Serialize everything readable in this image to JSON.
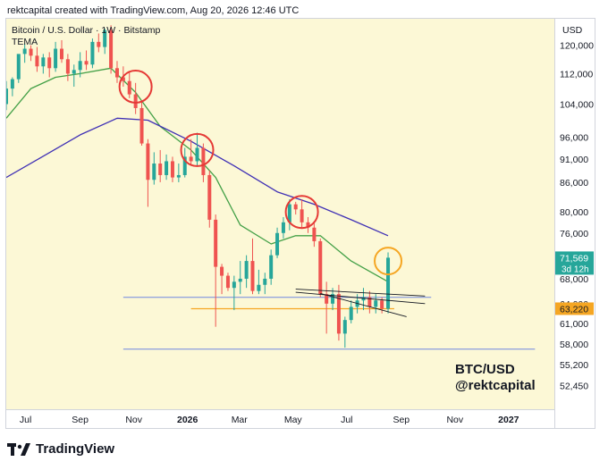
{
  "header": {
    "attribution": "rektcapital created with TradingView.com, Aug 20, 2026 12:46 UTC"
  },
  "chart_header": {
    "symbol": "Bitcoin / U.S. Dollar · 1W · Bitstamp",
    "indicator": "TEMA"
  },
  "currency": "USD",
  "watermark": {
    "line1": "BTC/USD",
    "line2": "@rektcapital"
  },
  "footer": {
    "brand": "TradingView",
    "logo_icon": "tradingview-logo-icon"
  },
  "colors": {
    "background": "#fcf8d6",
    "up_candle": "#26a69a",
    "down_candle": "#ef5350",
    "ema_short": "#43a047",
    "ema_long": "#3f30b5",
    "support_lines": "#6f86e0",
    "orange_level": "#f5a623",
    "red_circles": "#e53935",
    "orange_circle": "#f5a623",
    "price_tag": "#26a69a"
  },
  "chart_data": {
    "type": "candlestick",
    "timeframe": "1W",
    "y_scale": "log",
    "ylim": [
      49500,
      128000
    ],
    "xlim": [
      "2025-06-09",
      "2027-02-22"
    ],
    "x_ticks": [
      {
        "label": "Jul",
        "date": "2025-07-01"
      },
      {
        "label": "Sep",
        "date": "2025-09-01"
      },
      {
        "label": "Nov",
        "date": "2025-11-01"
      },
      {
        "label": "2026",
        "date": "2026-01-01",
        "bold": true
      },
      {
        "label": "Mar",
        "date": "2026-03-01"
      },
      {
        "label": "May",
        "date": "2026-05-01"
      },
      {
        "label": "Jul",
        "date": "2026-07-01"
      },
      {
        "label": "Sep",
        "date": "2026-09-01"
      },
      {
        "label": "Nov",
        "date": "2026-11-01"
      },
      {
        "label": "2027",
        "date": "2027-01-01",
        "bold": true
      }
    ],
    "y_ticks": [
      120000,
      112000,
      104000,
      96000,
      91000,
      86000,
      80000,
      76000,
      68000,
      64000,
      61000,
      58000,
      55200,
      52450
    ],
    "candles": [
      {
        "d": "2025-06-09",
        "o": 104000,
        "h": 110000,
        "l": 102500,
        "c": 108000
      },
      {
        "d": "2025-06-16",
        "o": 108000,
        "h": 111000,
        "l": 106000,
        "c": 110500
      },
      {
        "d": "2025-06-23",
        "o": 110500,
        "h": 117000,
        "l": 109500,
        "c": 117500
      },
      {
        "d": "2025-06-30",
        "o": 117500,
        "h": 120500,
        "l": 115000,
        "c": 119000
      },
      {
        "d": "2025-07-07",
        "o": 119000,
        "h": 120000,
        "l": 115500,
        "c": 117000
      },
      {
        "d": "2025-07-14",
        "o": 117000,
        "h": 119500,
        "l": 112500,
        "c": 114000
      },
      {
        "d": "2025-07-21",
        "o": 114000,
        "h": 117500,
        "l": 112000,
        "c": 116500
      },
      {
        "d": "2025-07-28",
        "o": 116500,
        "h": 118000,
        "l": 111000,
        "c": 113500
      },
      {
        "d": "2025-08-04",
        "o": 113500,
        "h": 121000,
        "l": 112500,
        "c": 119000
      },
      {
        "d": "2025-08-11",
        "o": 119000,
        "h": 121500,
        "l": 115000,
        "c": 116000
      },
      {
        "d": "2025-08-18",
        "o": 116000,
        "h": 117500,
        "l": 110000,
        "c": 112000
      },
      {
        "d": "2025-08-25",
        "o": 112000,
        "h": 114500,
        "l": 108500,
        "c": 113000
      },
      {
        "d": "2025-09-01",
        "o": 113000,
        "h": 118000,
        "l": 111000,
        "c": 115500
      },
      {
        "d": "2025-09-08",
        "o": 115500,
        "h": 118500,
        "l": 113000,
        "c": 114500
      },
      {
        "d": "2025-09-15",
        "o": 114500,
        "h": 122000,
        "l": 113500,
        "c": 121000
      },
      {
        "d": "2025-09-22",
        "o": 121000,
        "h": 123500,
        "l": 118000,
        "c": 119500
      },
      {
        "d": "2025-09-29",
        "o": 119500,
        "h": 125000,
        "l": 117500,
        "c": 124500
      },
      {
        "d": "2025-10-06",
        "o": 124500,
        "h": 126000,
        "l": 112000,
        "c": 113500
      },
      {
        "d": "2025-10-13",
        "o": 113500,
        "h": 115500,
        "l": 109500,
        "c": 111000
      },
      {
        "d": "2025-10-20",
        "o": 111000,
        "h": 114000,
        "l": 108500,
        "c": 110000
      },
      {
        "d": "2025-10-27",
        "o": 110000,
        "h": 112500,
        "l": 105500,
        "c": 106500
      },
      {
        "d": "2025-11-03",
        "o": 106500,
        "h": 109500,
        "l": 101500,
        "c": 103000
      },
      {
        "d": "2025-11-10",
        "o": 103000,
        "h": 105000,
        "l": 94000,
        "c": 94500
      },
      {
        "d": "2025-11-17",
        "o": 94500,
        "h": 95500,
        "l": 81000,
        "c": 86500
      },
      {
        "d": "2025-11-24",
        "o": 86500,
        "h": 92500,
        "l": 85500,
        "c": 90000
      },
      {
        "d": "2025-12-01",
        "o": 90000,
        "h": 93000,
        "l": 86000,
        "c": 87500
      },
      {
        "d": "2025-12-08",
        "o": 87500,
        "h": 92000,
        "l": 86500,
        "c": 90500
      },
      {
        "d": "2025-12-15",
        "o": 90500,
        "h": 91500,
        "l": 86000,
        "c": 87000
      },
      {
        "d": "2025-12-22",
        "o": 87000,
        "h": 90000,
        "l": 86000,
        "c": 87500
      },
      {
        "d": "2025-12-29",
        "o": 87500,
        "h": 93500,
        "l": 87000,
        "c": 91500
      },
      {
        "d": "2026-01-05",
        "o": 91500,
        "h": 95500,
        "l": 89500,
        "c": 90500
      },
      {
        "d": "2026-01-12",
        "o": 90500,
        "h": 97000,
        "l": 89500,
        "c": 93500
      },
      {
        "d": "2026-01-19",
        "o": 93500,
        "h": 94500,
        "l": 86000,
        "c": 87500
      },
      {
        "d": "2026-01-26",
        "o": 87500,
        "h": 88500,
        "l": 77000,
        "c": 78500
      },
      {
        "d": "2026-02-02",
        "o": 78500,
        "h": 79500,
        "l": 60500,
        "c": 70000
      },
      {
        "d": "2026-02-09",
        "o": 70000,
        "h": 70500,
        "l": 65500,
        "c": 68500
      },
      {
        "d": "2026-02-16",
        "o": 68500,
        "h": 69000,
        "l": 66000,
        "c": 66500
      },
      {
        "d": "2026-02-23",
        "o": 66500,
        "h": 68500,
        "l": 63000,
        "c": 67500
      },
      {
        "d": "2026-03-02",
        "o": 67500,
        "h": 71000,
        "l": 65500,
        "c": 68000
      },
      {
        "d": "2026-03-09",
        "o": 68000,
        "h": 72000,
        "l": 66500,
        "c": 71000
      },
      {
        "d": "2026-03-16",
        "o": 71000,
        "h": 75000,
        "l": 65500,
        "c": 66000
      },
      {
        "d": "2026-03-23",
        "o": 66000,
        "h": 69500,
        "l": 65500,
        "c": 67000
      },
      {
        "d": "2026-03-30",
        "o": 67000,
        "h": 69000,
        "l": 65500,
        "c": 68000
      },
      {
        "d": "2026-04-06",
        "o": 68000,
        "h": 73000,
        "l": 67000,
        "c": 72000
      },
      {
        "d": "2026-04-13",
        "o": 72000,
        "h": 77000,
        "l": 71500,
        "c": 76000
      },
      {
        "d": "2026-04-20",
        "o": 76000,
        "h": 79000,
        "l": 75000,
        "c": 78000
      },
      {
        "d": "2026-04-27",
        "o": 78000,
        "h": 82500,
        "l": 76500,
        "c": 81500
      },
      {
        "d": "2026-05-04",
        "o": 81500,
        "h": 82000,
        "l": 79500,
        "c": 80500
      },
      {
        "d": "2026-05-11",
        "o": 80500,
        "h": 82500,
        "l": 77000,
        "c": 78000
      },
      {
        "d": "2026-05-18",
        "o": 78000,
        "h": 79000,
        "l": 76000,
        "c": 77000
      },
      {
        "d": "2026-05-25",
        "o": 77000,
        "h": 78000,
        "l": 73500,
        "c": 74500
      },
      {
        "d": "2026-06-01",
        "o": 74500,
        "h": 75000,
        "l": 65000,
        "c": 65500
      },
      {
        "d": "2026-06-08",
        "o": 65500,
        "h": 67500,
        "l": 59500,
        "c": 64000
      },
      {
        "d": "2026-06-15",
        "o": 64000,
        "h": 66500,
        "l": 63000,
        "c": 65500
      },
      {
        "d": "2026-06-22",
        "o": 65500,
        "h": 67000,
        "l": 58500,
        "c": 59500
      },
      {
        "d": "2026-06-29",
        "o": 59500,
        "h": 62000,
        "l": 57500,
        "c": 61500
      },
      {
        "d": "2026-07-06",
        "o": 61500,
        "h": 64500,
        "l": 61000,
        "c": 63500
      },
      {
        "d": "2026-07-13",
        "o": 63500,
        "h": 65500,
        "l": 62500,
        "c": 64500
      },
      {
        "d": "2026-07-20",
        "o": 64500,
        "h": 66500,
        "l": 63000,
        "c": 65000
      },
      {
        "d": "2026-07-27",
        "o": 65000,
        "h": 66000,
        "l": 62500,
        "c": 63500
      },
      {
        "d": "2026-08-03",
        "o": 63500,
        "h": 65500,
        "l": 62500,
        "c": 64500
      },
      {
        "d": "2026-08-10",
        "o": 64500,
        "h": 65000,
        "l": 62500,
        "c": 63220
      },
      {
        "d": "2026-08-17",
        "o": 63220,
        "h": 72500,
        "l": 62500,
        "c": 71569
      }
    ],
    "series": [
      {
        "color": "#43a047",
        "points": [
          [
            "2025-06-09",
            100500
          ],
          [
            "2025-07-07",
            108000
          ],
          [
            "2025-08-04",
            111000
          ],
          [
            "2025-09-01",
            112000
          ],
          [
            "2025-10-06",
            113500
          ],
          [
            "2025-11-03",
            107000
          ],
          [
            "2025-12-01",
            98500
          ],
          [
            "2026-01-05",
            93000
          ],
          [
            "2026-02-02",
            87000
          ],
          [
            "2026-03-02",
            77500
          ],
          [
            "2026-04-06",
            74000
          ],
          [
            "2026-05-04",
            75500
          ],
          [
            "2026-06-01",
            75500
          ],
          [
            "2026-07-06",
            71000
          ],
          [
            "2026-08-17",
            67500
          ]
        ]
      },
      {
        "color": "#3f30b5",
        "points": [
          [
            "2025-06-09",
            87000
          ],
          [
            "2025-07-20",
            91500
          ],
          [
            "2025-09-01",
            96500
          ],
          [
            "2025-10-13",
            100500
          ],
          [
            "2025-11-17",
            100000
          ],
          [
            "2026-01-05",
            95000
          ],
          [
            "2026-02-23",
            89500
          ],
          [
            "2026-04-13",
            84000
          ],
          [
            "2026-05-25",
            81500
          ],
          [
            "2026-07-06",
            78500
          ],
          [
            "2026-08-17",
            75500
          ]
        ]
      }
    ],
    "last_price": {
      "value": 71569,
      "label": "71,569",
      "countdown": "3d 12h"
    },
    "orange_level": {
      "value": 63220,
      "label": "63,220"
    },
    "horizontal_lines": [
      {
        "value": 65000,
        "from": "2025-10-20",
        "to": "2026-10-05"
      },
      {
        "value": 57300,
        "from": "2025-10-20",
        "to": "2027-01-31"
      }
    ],
    "orange_line": {
      "value": 63220,
      "from": "2026-01-05",
      "to": "2026-08-24"
    },
    "trend_lines": [
      {
        "from": [
          "2026-05-04",
          66300
        ],
        "to": [
          "2026-09-28",
          65200
        ]
      },
      {
        "from": [
          "2026-05-04",
          65800
        ],
        "to": [
          "2026-09-28",
          64000
        ]
      },
      {
        "from": [
          "2026-06-01",
          65600
        ],
        "to": [
          "2026-09-07",
          62000
        ]
      }
    ],
    "circles": [
      {
        "d": "2025-11-03",
        "v": 108500,
        "color": "#e53935"
      },
      {
        "d": "2026-01-12",
        "v": 93000,
        "color": "#e53935"
      },
      {
        "d": "2026-05-11",
        "v": 80000,
        "color": "#e53935"
      },
      {
        "d": "2026-08-17",
        "v": 71000,
        "color": "#f5a623"
      }
    ]
  }
}
